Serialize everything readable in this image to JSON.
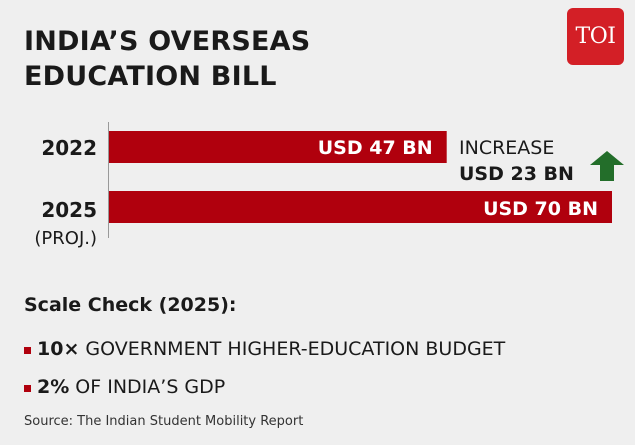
{
  "header": {
    "title_line1": "INDIA’S OVERSEAS",
    "title_line2": "EDUCATION BILL",
    "logo_text": "TOI"
  },
  "colors": {
    "background": "#efefef",
    "bar": "#b0000d",
    "logo": "#d31f26",
    "arrow": "#236e2a",
    "text": "#1a1a1a"
  },
  "chart_data": {
    "type": "bar",
    "orientation": "horizontal",
    "categories": [
      "2022",
      "2025"
    ],
    "category_sublabels": [
      "",
      "(PROJ.)"
    ],
    "values": [
      47,
      70
    ],
    "data_labels": [
      "USD 47 BN",
      "USD 70 BN"
    ],
    "unit": "USD BN",
    "xlim": [
      0,
      70
    ],
    "grid": false,
    "annotation": {
      "line1": "INCREASE",
      "line2": "USD 23 BN",
      "icon": "up-arrow-icon"
    }
  },
  "scale_check": {
    "heading": "Scale Check (2025):",
    "items": [
      {
        "highlight": "10×",
        "text": " GOVERNMENT HIGHER-EDUCATION BUDGET"
      },
      {
        "highlight": "2%",
        "text": " OF INDIA’S GDP"
      }
    ]
  },
  "source": "Source: The Indian Student Mobility Report"
}
